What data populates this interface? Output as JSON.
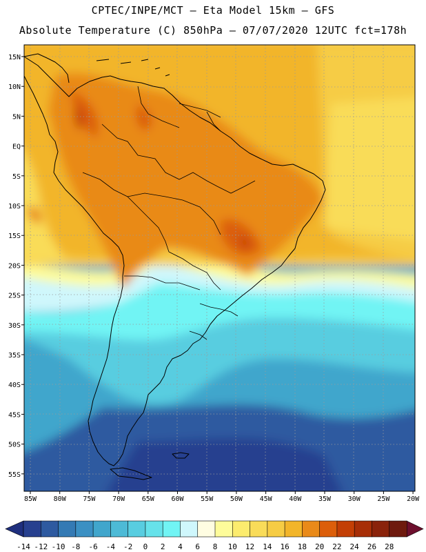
{
  "title": {
    "line1": "CPTEC/INPE/MCT —  Eta Model 15km — GFS",
    "line2": "Absolute Temperature (C) 850hPa — 07/07/2020 12UTC fct=178h"
  },
  "map": {
    "lat_labels": [
      "15N",
      "10N",
      "5N",
      "EQ",
      "5S",
      "10S",
      "15S",
      "20S",
      "25S",
      "30S",
      "35S",
      "40S",
      "45S",
      "50S",
      "55S"
    ],
    "lon_labels": [
      "85W",
      "80W",
      "75W",
      "70W",
      "65W",
      "60W",
      "55W",
      "50W",
      "45W",
      "40W",
      "35W",
      "30W",
      "25W",
      "20W"
    ]
  },
  "colorbar": {
    "labels": [
      "-14",
      "-12",
      "-10",
      "-8",
      "-6",
      "-4",
      "-2",
      "0",
      "2",
      "4",
      "6",
      "8",
      "10",
      "12",
      "14",
      "16",
      "18",
      "20",
      "22",
      "24",
      "26",
      "28"
    ],
    "low_color": "#1f2f7e",
    "colors": [
      "#27408f",
      "#2e5aa0",
      "#347ab4",
      "#3b90c3",
      "#41a6cc",
      "#4dbad6",
      "#58cde0",
      "#66e2ea",
      "#71f4f4",
      "#cff7fc",
      "#fffde2",
      "#fefc9a",
      "#fcec6e",
      "#f9dc59",
      "#f6cc44",
      "#f2b52a",
      "#e98a19",
      "#dc5e0a",
      "#c33f05",
      "#a72e07",
      "#8a230b",
      "#6e1a0e"
    ],
    "high_color": "#6d0f2d"
  }
}
